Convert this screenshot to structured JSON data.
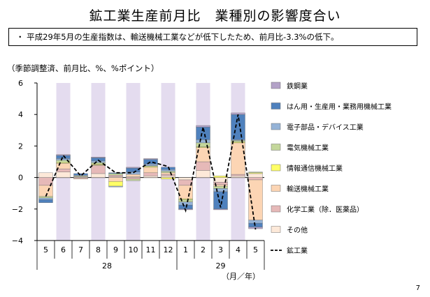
{
  "page": {
    "title": "鉱工業生産前月比　業種別の影響度合い",
    "summary": "・ 平成29年5月の生産指数は、輸送機械工業などが低下したため、前月比-3.3%の低下。",
    "unit_label": "（季節調整済、前月比、%、%ポイント）",
    "page_number": "7"
  },
  "chart_data": {
    "type": "bar",
    "stacked": true,
    "categories": [
      "5",
      "6",
      "7",
      "8",
      "9",
      "10",
      "11",
      "12",
      "1",
      "2",
      "3",
      "4",
      "5"
    ],
    "year_groups": [
      {
        "label": "28",
        "start": 0,
        "end": 7
      },
      {
        "label": "29",
        "start": 8,
        "end": 12
      }
    ],
    "x_unit_label": "（月／年）",
    "ylim": [
      -4,
      6
    ],
    "yticks": [
      -4,
      -2,
      0,
      2,
      4,
      6
    ],
    "ytick_labels": [
      "−4",
      "−2",
      "0",
      "2",
      "4",
      "6"
    ],
    "shaded_categories": [
      1,
      3,
      5,
      7,
      9,
      11
    ],
    "shade_color": "#e4dcef",
    "series": [
      {
        "name": "その他",
        "color": "#fde9d9",
        "values": [
          0.3,
          0.35,
          0.05,
          0.25,
          0.05,
          0.05,
          0.1,
          0.1,
          -0.15,
          0.45,
          -0.3,
          0.1,
          0.25
        ]
      },
      {
        "name": "化学工業（除．医薬品）",
        "color": "#e6b9b8",
        "values": [
          -0.5,
          0.2,
          -0.05,
          0.5,
          0.1,
          -0.1,
          0.2,
          0.1,
          -0.35,
          0.55,
          -0.15,
          0.1,
          -0.15
        ]
      },
      {
        "name": "輸送機械工業",
        "color": "#fcd5b4",
        "values": [
          -0.7,
          0.35,
          -0.05,
          0.05,
          -0.25,
          0.15,
          0.35,
          0.1,
          -0.85,
          0.9,
          -0.1,
          2.0,
          -2.55
        ]
      },
      {
        "name": "情報通信機械工業",
        "color": "#ffff66",
        "values": [
          0.0,
          0.05,
          0.0,
          0.05,
          -0.3,
          0.0,
          0.05,
          -0.1,
          -0.05,
          0.05,
          0.1,
          0.05,
          0.05
        ]
      },
      {
        "name": "電気機械工業",
        "color": "#c4d79b",
        "values": [
          -0.1,
          0.15,
          0.05,
          0.1,
          0.1,
          -0.1,
          0.05,
          0.1,
          -0.15,
          0.25,
          -0.15,
          0.1,
          0.05
        ]
      },
      {
        "name": "電子部品・デバイス工業",
        "color": "#95b3d7",
        "values": [
          -0.1,
          0.1,
          0.05,
          0.1,
          -0.05,
          0.15,
          0.1,
          0.1,
          -0.2,
          0.2,
          -0.2,
          0.05,
          -0.2
        ]
      },
      {
        "name": "はん用・生産用・業務用機械工業",
        "color": "#4f81bd",
        "values": [
          -0.2,
          0.2,
          0.1,
          0.2,
          0.05,
          0.25,
          0.3,
          0.15,
          -0.25,
          0.8,
          -1.1,
          1.6,
          -0.25
        ]
      },
      {
        "name": "鉄鋼業",
        "color": "#b3a2c7",
        "values": [
          0.0,
          0.05,
          0.0,
          0.05,
          0.0,
          0.05,
          0.05,
          0.0,
          -0.05,
          0.1,
          -0.05,
          0.1,
          -0.1
        ]
      }
    ],
    "line": {
      "name": "鉱工業",
      "style": "dashed",
      "color": "#000000",
      "values": [
        -1.2,
        1.4,
        0.1,
        1.1,
        0.3,
        0.3,
        1.0,
        0.7,
        -2.1,
        3.2,
        -1.9,
        4.0,
        -3.3
      ]
    },
    "legend_order": [
      "鉄鋼業",
      "はん用・生産用・業務用機械工業",
      "電子部品・デバイス工業",
      "電気機械工業",
      "情報通信機械工業",
      "輸送機械工業",
      "化学工業（除．医薬品）",
      "その他",
      "鉱工業"
    ],
    "legend_position": "right"
  }
}
